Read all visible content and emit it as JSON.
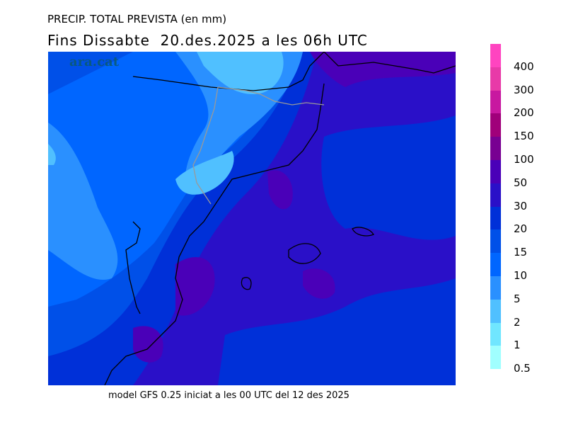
{
  "title": "PRECIP. TOTAL PREVISTA (en mm)",
  "subtitle": "Fins Dissabte  20.des.2025 a les 06h UTC",
  "watermark": "ara.cat",
  "footer": "model GFS 0.25 iniciat a les 00 UTC del 12 des 2025",
  "legend": {
    "unit": "mm",
    "bins": [
      {
        "color": "#ff44c0"
      },
      {
        "label": "400",
        "color": "#e83aa8"
      },
      {
        "label": "300",
        "color": "#c818a0"
      },
      {
        "label": "200",
        "color": "#a0007a"
      },
      {
        "label": "150",
        "color": "#780092"
      },
      {
        "label": "100",
        "color": "#4a00b8"
      },
      {
        "label": "50",
        "color": "#2a10c8"
      },
      {
        "label": "30",
        "color": "#0030d8"
      },
      {
        "label": "20",
        "color": "#0050e8"
      },
      {
        "label": "15",
        "color": "#0066ff"
      },
      {
        "label": "10",
        "color": "#2a90ff"
      },
      {
        "label": "5",
        "color": "#50c0ff"
      },
      {
        "label": "2",
        "color": "#70e6ff"
      },
      {
        "label": "1",
        "color": "#a0ffff"
      }
    ],
    "bottom_label": "0.5"
  }
}
